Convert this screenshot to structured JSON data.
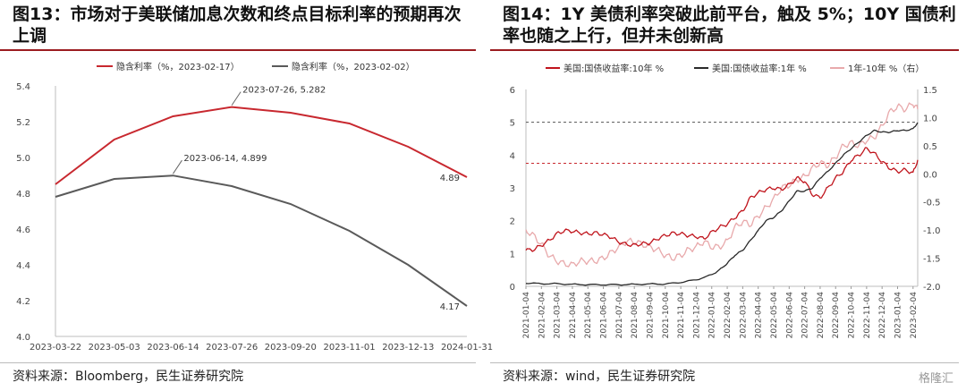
{
  "left": {
    "title": "图13：市场对于美联储加息次数和终点目标利率的预期再次上调",
    "source": "资料来源：Bloomberg，民生证券研究院"
  },
  "right": {
    "title": "图14：1Y 美债利率突破此前平台，触及 5%；10Y 国债利率也随之上行，但并未创新高",
    "source": "资料来源：wind，民生证券研究院"
  },
  "watermark": "格隆汇",
  "chart_data": [
    {
      "type": "line",
      "title": "",
      "categories": [
        "2023-03-22",
        "2023-05-03",
        "2023-06-14",
        "2023-07-26",
        "2023-09-20",
        "2023-11-01",
        "2023-12-13",
        "2024-01-31"
      ],
      "ylim": [
        4.0,
        5.4
      ],
      "yticks": [
        "4.0",
        "4.2",
        "4.4",
        "4.6",
        "4.8",
        "5.0",
        "5.2",
        "5.4"
      ],
      "series": [
        {
          "name": "隐含利率（%，2023-02-17）",
          "color": "#c8282f",
          "values": [
            4.85,
            5.1,
            5.23,
            5.282,
            5.25,
            5.19,
            5.06,
            4.89
          ],
          "end_label": "4.89"
        },
        {
          "name": "隐含利率（%，2023-02-02）",
          "color": "#5a5a5a",
          "values": [
            4.78,
            4.88,
            4.899,
            4.84,
            4.74,
            4.59,
            4.4,
            4.17
          ],
          "end_label": "4.17"
        }
      ],
      "annotations": [
        {
          "text": "2023-07-26, 5.282",
          "category": "2023-07-26",
          "series": 0
        },
        {
          "text": "2023-06-14, 4.899",
          "category": "2023-06-14",
          "series": 1
        }
      ]
    },
    {
      "type": "line",
      "title": "",
      "x_ticks": [
        "2021-01-04",
        "2021-02-04",
        "2021-03-04",
        "2021-04-04",
        "2021-05-04",
        "2021-06-04",
        "2021-07-04",
        "2021-08-04",
        "2021-09-04",
        "2021-10-04",
        "2021-11-04",
        "2021-12-04",
        "2022-01-04",
        "2022-02-04",
        "2022-03-04",
        "2022-04-04",
        "2022-05-04",
        "2022-06-04",
        "2022-07-04",
        "2022-08-04",
        "2022-09-04",
        "2022-10-04",
        "2022-11-04",
        "2022-12-04",
        "2023-01-04",
        "2023-02-04"
      ],
      "ylim_left": [
        0,
        6
      ],
      "yticks_left": [
        "0",
        "1",
        "2",
        "3",
        "4",
        "5",
        "6"
      ],
      "ylim_right": [
        -2.0,
        1.5
      ],
      "yticks_right": [
        "-2.0",
        "-1.5",
        "-1.0",
        "-0.5",
        "0.0",
        "0.5",
        "1.0",
        "1.5"
      ],
      "reference_lines": [
        {
          "axis": "left",
          "value": 5.0,
          "color": "#555555"
        },
        {
          "axis": "left",
          "value": 3.75,
          "color": "#c8282f"
        }
      ],
      "series": [
        {
          "name": "美国:国债收益率:10年 %",
          "color": "#c0141c",
          "axis": "left",
          "x_months": [
            0,
            0.5,
            1,
            1.5,
            2,
            2.5,
            3,
            3.5,
            4,
            4.5,
            5,
            5.5,
            6,
            6.5,
            7,
            7.5,
            8,
            8.5,
            9,
            9.5,
            10,
            10.5,
            11,
            11.5,
            12,
            12.5,
            13,
            13.5,
            14,
            14.5,
            15,
            15.5,
            16,
            16.5,
            17,
            17.5,
            18,
            18.5,
            19,
            19.5,
            20,
            20.5,
            21,
            21.5,
            22,
            22.5,
            23,
            23.5,
            24,
            24.5,
            25,
            25.3
          ],
          "values": [
            1.1,
            1.12,
            1.25,
            1.4,
            1.6,
            1.7,
            1.68,
            1.63,
            1.6,
            1.63,
            1.58,
            1.5,
            1.35,
            1.28,
            1.25,
            1.3,
            1.32,
            1.45,
            1.55,
            1.62,
            1.6,
            1.55,
            1.52,
            1.45,
            1.65,
            1.8,
            1.9,
            2.1,
            2.3,
            2.7,
            2.85,
            2.95,
            3.0,
            2.95,
            3.1,
            3.3,
            3.2,
            2.8,
            2.7,
            3.0,
            3.3,
            3.5,
            3.85,
            4.0,
            4.2,
            4.05,
            3.8,
            3.6,
            3.5,
            3.55,
            3.45,
            3.85
          ]
        },
        {
          "name": "美国:国债收益率:1年 %",
          "color": "#2a2a2a",
          "axis": "left",
          "x_months": [
            0,
            1,
            2,
            3,
            4,
            5,
            6,
            7,
            8,
            9,
            10,
            11,
            12,
            12.5,
            13,
            13.5,
            14,
            14.5,
            15,
            15.5,
            16,
            16.5,
            17,
            17.5,
            18,
            18.5,
            19,
            19.5,
            20,
            20.5,
            21,
            21.5,
            22,
            22.5,
            23,
            23.5,
            24,
            24.5,
            25,
            25.3
          ],
          "values": [
            0.1,
            0.08,
            0.08,
            0.06,
            0.05,
            0.05,
            0.05,
            0.06,
            0.07,
            0.07,
            0.12,
            0.2,
            0.35,
            0.5,
            0.7,
            0.95,
            1.1,
            1.4,
            1.7,
            2.0,
            2.1,
            2.3,
            2.6,
            2.9,
            2.9,
            3.0,
            3.3,
            3.5,
            3.75,
            4.0,
            4.2,
            4.4,
            4.6,
            4.75,
            4.7,
            4.7,
            4.75,
            4.75,
            4.8,
            4.99
          ]
        },
        {
          "name": "1年-10年 %（右）",
          "color": "#e8a9ab",
          "axis": "right",
          "x_months": [
            0,
            0.5,
            1,
            1.5,
            2,
            2.5,
            3,
            3.5,
            4,
            4.5,
            5,
            5.5,
            6,
            6.5,
            7,
            7.5,
            8,
            8.5,
            9,
            9.5,
            10,
            10.5,
            11,
            11.5,
            12,
            12.5,
            13,
            13.5,
            14,
            14.5,
            15,
            15.5,
            16,
            16.5,
            17,
            17.5,
            18,
            18.5,
            19,
            19.5,
            20,
            20.5,
            21,
            21.5,
            22,
            22.5,
            23,
            23.5,
            24,
            24.5,
            25,
            25.3
          ],
          "values": [
            -1.0,
            -1.1,
            -1.25,
            -1.45,
            -1.55,
            -1.6,
            -1.62,
            -1.55,
            -1.55,
            -1.55,
            -1.5,
            -1.4,
            -1.3,
            -1.2,
            -1.2,
            -1.25,
            -1.3,
            -1.35,
            -1.45,
            -1.5,
            -1.45,
            -1.35,
            -1.3,
            -1.2,
            -1.3,
            -1.3,
            -1.2,
            -0.95,
            -0.85,
            -0.9,
            -0.75,
            -0.6,
            -0.45,
            -0.25,
            -0.2,
            -0.1,
            -0.05,
            0.1,
            0.2,
            0.15,
            0.3,
            0.5,
            0.55,
            0.5,
            0.6,
            0.65,
            0.85,
            1.1,
            1.2,
            1.15,
            1.25,
            1.15
          ]
        }
      ]
    }
  ]
}
